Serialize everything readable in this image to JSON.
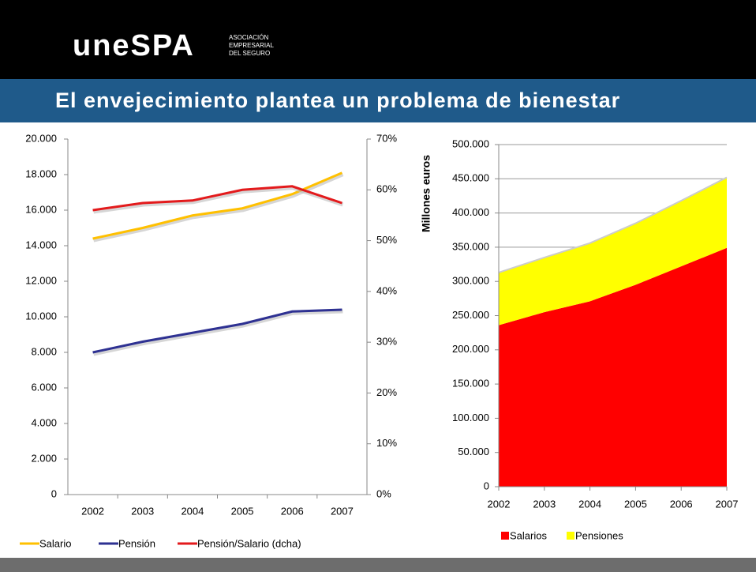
{
  "header": {
    "logo": "uneSPA",
    "logo_sub": [
      "ASOCIACIÓN",
      "EMPRESARIAL",
      "DEL SEGURO"
    ],
    "title": "El envejecimiento plantea un problema de bienestar"
  },
  "chart_data": [
    {
      "type": "line",
      "categories": [
        "2002",
        "2003",
        "2004",
        "2005",
        "2006",
        "2007"
      ],
      "series": [
        {
          "name": "Salario",
          "color": "#ffc000",
          "values": [
            14400,
            15000,
            15700,
            16100,
            16900,
            18100
          ]
        },
        {
          "name": "Pensión",
          "color": "#2e3192",
          "values": [
            8000,
            8600,
            9100,
            9600,
            10300,
            10400
          ]
        },
        {
          "name": "Pensión/Salario (dcha)",
          "color": "#e31a1c",
          "axis": "y2",
          "values": [
            56.0,
            57.4,
            57.9,
            60.0,
            60.7,
            57.4
          ]
        }
      ],
      "ylim": [
        0,
        20000
      ],
      "yticks": [
        0,
        {
          "value": 2000,
          "label": "2.000"
        },
        {
          "value": 4000,
          "label": "4.000"
        },
        {
          "value": 6000,
          "label": "6.000"
        },
        {
          "value": 8000,
          "label": "8.000"
        },
        {
          "value": 10000,
          "label": "10.000"
        },
        {
          "value": 12000,
          "label": "12.000"
        },
        {
          "value": 14000,
          "label": "14.000"
        },
        {
          "value": 16000,
          "label": "16.000"
        },
        {
          "value": 18000,
          "label": "18.000"
        },
        {
          "value": 20000,
          "label": "20.000"
        }
      ],
      "y2lim": [
        0,
        70
      ],
      "y2ticks": [
        {
          "value": 0,
          "label": "0%"
        },
        {
          "value": 10,
          "label": "10%"
        },
        {
          "value": 20,
          "label": "20%"
        },
        {
          "value": 30,
          "label": "30%"
        },
        {
          "value": 40,
          "label": "40%"
        },
        {
          "value": 50,
          "label": "50%"
        },
        {
          "value": 60,
          "label": "60%"
        },
        {
          "value": 70,
          "label": "70%"
        }
      ],
      "legend": "bottom",
      "grid": false
    },
    {
      "type": "area",
      "stacked": true,
      "categories": [
        "2002",
        "2003",
        "2004",
        "2005",
        "2006",
        "2007"
      ],
      "y_label": "Millones euros",
      "series": [
        {
          "name": "Salarios",
          "color": "#ff0000",
          "values": [
            236000,
            255000,
            271000,
            295000,
            322000,
            349000
          ]
        },
        {
          "name": "Pensiones",
          "color": "#ffff00",
          "values": [
            77000,
            80000,
            85000,
            90000,
            96000,
            103000
          ]
        }
      ],
      "ylim": [
        0,
        500000
      ],
      "yticks": [
        0,
        {
          "value": 50000,
          "label": "50.000"
        },
        {
          "value": 100000,
          "label": "100.000"
        },
        {
          "value": 150000,
          "label": "150.000"
        },
        {
          "value": 200000,
          "label": "200.000"
        },
        {
          "value": 250000,
          "label": "250.000"
        },
        {
          "value": 300000,
          "label": "300.000"
        },
        {
          "value": 350000,
          "label": "350.000"
        },
        {
          "value": 400000,
          "label": "400.000"
        },
        {
          "value": 450000,
          "label": "450.000"
        },
        {
          "value": 500000,
          "label": "500.000"
        }
      ],
      "legend": "bottom",
      "grid": true
    }
  ]
}
